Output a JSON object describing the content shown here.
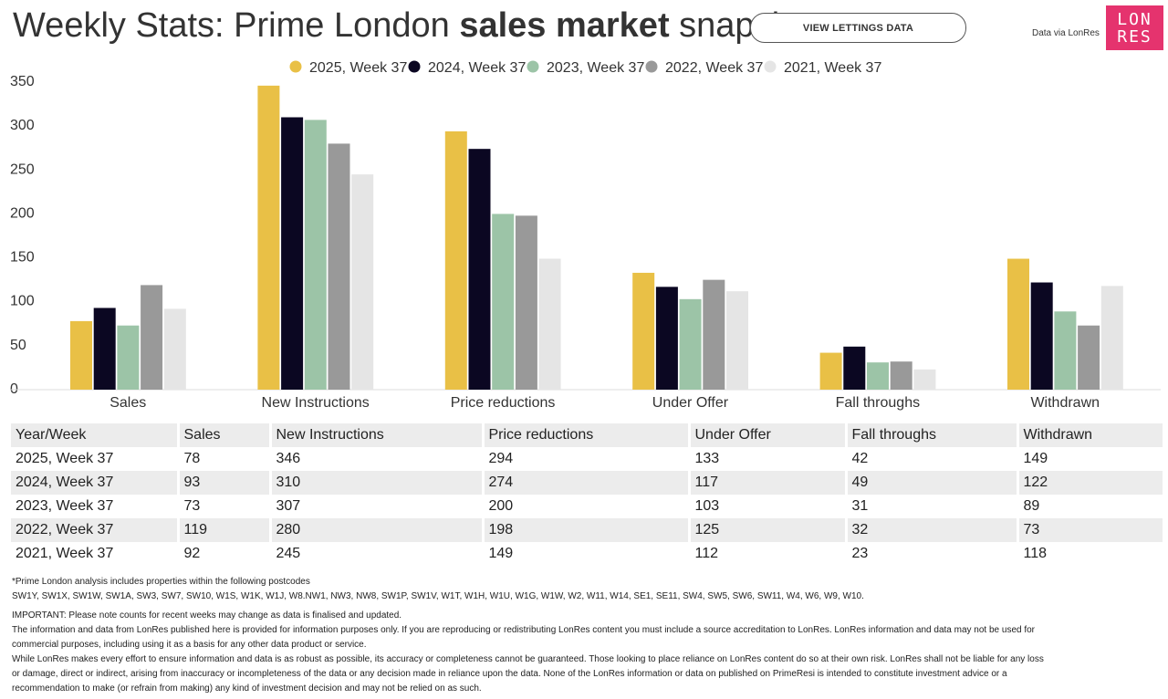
{
  "header": {
    "title_prefix": "Weekly Stats: Prime London ",
    "title_bold": "sales market",
    "title_suffix": " snapshot",
    "view_button": "VIEW LETTINGS DATA",
    "data_via": "Data via LonRes",
    "logo_line1": "LON",
    "logo_line2": "RES",
    "logo_color": "#e5336e"
  },
  "chart_data": {
    "type": "bar",
    "categories": [
      "Sales",
      "New Instructions",
      "Price reductions",
      "Under Offer",
      "Fall throughs",
      "Withdrawn"
    ],
    "series": [
      {
        "name": "2025, Week 37",
        "color": "#e9c046",
        "values": [
          78,
          346,
          294,
          133,
          42,
          149
        ]
      },
      {
        "name": "2024, Week 37",
        "color": "#0b0722",
        "values": [
          93,
          310,
          274,
          117,
          49,
          122
        ]
      },
      {
        "name": "2023, Week 37",
        "color": "#9cc4a7",
        "values": [
          73,
          307,
          200,
          103,
          31,
          89
        ]
      },
      {
        "name": "2022, Week 37",
        "color": "#999999",
        "values": [
          119,
          280,
          198,
          125,
          32,
          73
        ]
      },
      {
        "name": "2021, Week 37",
        "color": "#e5e5e5",
        "values": [
          92,
          245,
          149,
          112,
          23,
          118
        ]
      }
    ],
    "y_ticks": [
      0,
      50,
      100,
      150,
      200,
      250,
      300,
      350
    ],
    "ylim": [
      0,
      350
    ],
    "legend_position": "top-center",
    "grid": false
  },
  "table": {
    "headers": [
      "Year/Week",
      "Sales",
      "New Instructions",
      "Price reductions",
      "Under Offer",
      "Fall throughs",
      "Withdrawn"
    ],
    "rows": [
      [
        "2025, Week 37",
        "78",
        "346",
        "294",
        "133",
        "42",
        "149"
      ],
      [
        "2024, Week 37",
        "93",
        "310",
        "274",
        "117",
        "49",
        "122"
      ],
      [
        "2023, Week 37",
        "73",
        "307",
        "200",
        "103",
        "31",
        "89"
      ],
      [
        "2022, Week 37",
        "119",
        "280",
        "198",
        "125",
        "32",
        "73"
      ],
      [
        "2021, Week 37",
        "92",
        "245",
        "149",
        "112",
        "23",
        "118"
      ]
    ]
  },
  "notes": {
    "postcode_heading": "*Prime London analysis includes properties within the following postcodes",
    "postcodes": "SW1Y, SW1X, SW1W, SW1A, SW3, SW7, SW10, W1S, W1K, W1J, W8.NW1, NW3, NW8, SW1P, SW1V, W1T, W1H, W1U, W1G, W1W, W2, W11, W14, SE1, SE11, SW4, SW5, SW6, SW11, W4, W6, W9, W10.",
    "important": "IMPORTANT: Please note counts for recent weeks may change as data is finalised and updated.",
    "info_line1": "The information and data from LonRes published here is provided for information purposes only. If you are reproducing or redistributing LonRes content you must include a source accreditation to LonRes. LonRes information and data may not be used for",
    "info_line2": "commercial purposes, including using it as a basis for any other data product or service.",
    "info_line3": "While LonRes makes every effort to ensure information and data is as robust as possible, its accuracy or completeness cannot be guaranteed. Those looking to place reliance on LonRes content do so at their own risk. LonRes shall not be liable for any loss",
    "info_line4": "or damage, direct or indirect, arising from inaccuracy or incompleteness of the data or any decision made in reliance upon the data. None of the LonRes information or data on published on PrimeResi is intended to constitute investment advice or a",
    "info_line5": "recommendation to make (or refrain from making) any kind of investment decision and may not be relied on as such."
  }
}
